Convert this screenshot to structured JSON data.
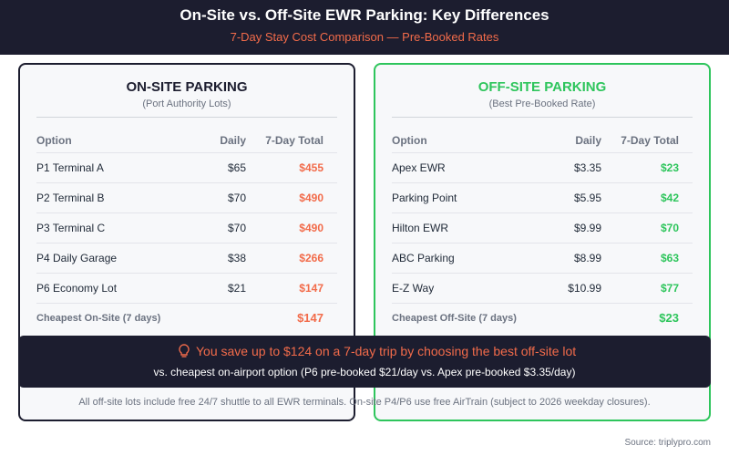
{
  "header": {
    "title": "On-Site vs. Off-Site EWR Parking: Key Differences",
    "subtitle": "7-Day Stay Cost Comparison — Pre-Booked Rates"
  },
  "panels": [
    {
      "title": "ON-SITE PARKING",
      "subtitle": "(Port Authority Lots)",
      "columns": [
        "Option",
        "Daily",
        "7-Day Total"
      ],
      "rows": [
        [
          "P1 Terminal A",
          "$65",
          "$455"
        ],
        [
          "P2 Terminal B",
          "$70",
          "$490"
        ],
        [
          "P3 Terminal C",
          "$70",
          "$490"
        ],
        [
          "P4 Daily Garage",
          "$38",
          "$266"
        ],
        [
          "P6 Economy Lot",
          "$21",
          "$147"
        ]
      ],
      "summary": {
        "label": "Cheapest On-Site (7 days)",
        "value": "$147"
      }
    },
    {
      "title": "OFF-SITE PARKING",
      "subtitle": "(Best Pre-Booked Rate)",
      "columns": [
        "Option",
        "Daily",
        "7-Day Total"
      ],
      "rows": [
        [
          "Apex EWR",
          "$3.35",
          "$23"
        ],
        [
          "Parking Point",
          "$5.95",
          "$42"
        ],
        [
          "Hilton EWR",
          "$9.99",
          "$70"
        ],
        [
          "ABC Parking",
          "$8.99",
          "$63"
        ],
        [
          "E-Z Way",
          "$10.99",
          "$77"
        ]
      ],
      "summary": {
        "label": "Cheapest Off-Site (7 days)",
        "value": "$23"
      }
    }
  ],
  "banner": {
    "headline": "You save up to $124 on a 7-day trip by choosing the best off-site lot",
    "detail": "vs. cheapest on-airport option (P6 pre-booked $21/day vs. Apex pre-booked $3.35/day)"
  },
  "footnote": "All off-site lots include free 24/7 shuttle to all EWR terminals. On-site P4/P6 use free AirTrain (subject to 2026 weekday closures).",
  "source": "Source: triplypro.com"
}
